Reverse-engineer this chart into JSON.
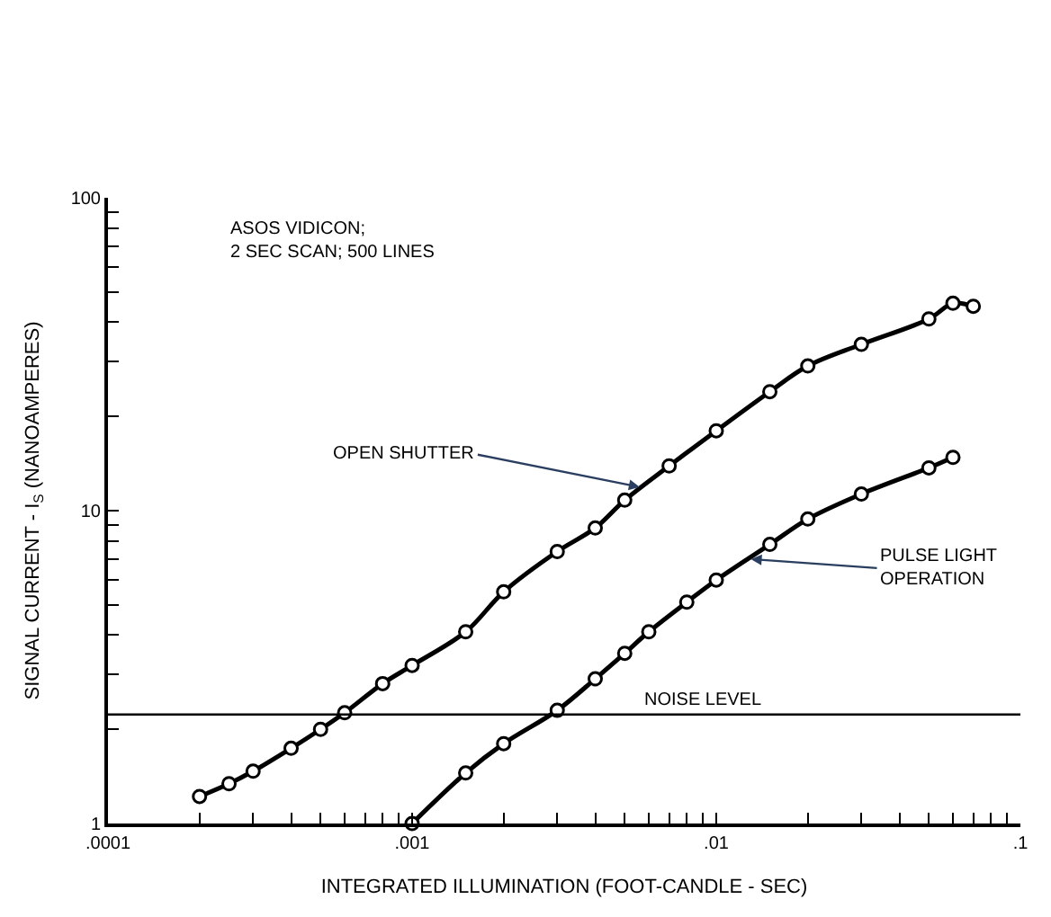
{
  "chart_data": {
    "type": "line",
    "xlabel": "INTEGRATED ILLUMINATION (FOOT-CANDLE - SEC)",
    "ylabel": "SIGNAL CURRENT - I$_{S}$ (NANOAMPERES)",
    "series": [
      {
        "color": "#000000",
        "x": [
          0.0002,
          0.00025,
          0.0003,
          0.0004,
          0.0005,
          0.0006,
          0.0008,
          0.001,
          0.0015,
          0.002,
          0.003,
          0.004,
          0.005,
          0.007,
          0.01,
          0.015,
          0.02,
          0.03,
          0.05,
          0.06,
          0.07
        ],
        "values": [
          1.22,
          1.34,
          1.47,
          1.74,
          2.0,
          2.26,
          2.8,
          3.2,
          4.1,
          5.5,
          7.4,
          8.8,
          10.8,
          13.9,
          18,
          24,
          29,
          34,
          41,
          46,
          45
        ]
      },
      {
        "color": "#000000",
        "x": [
          0.001,
          0.0015,
          0.002,
          0.003,
          0.004,
          0.005,
          0.006,
          0.008,
          0.01,
          0.015,
          0.02,
          0.03,
          0.05,
          0.06
        ],
        "values": [
          1.0,
          1.45,
          1.8,
          2.3,
          2.9,
          3.5,
          4.1,
          5.1,
          6.0,
          7.8,
          9.4,
          11.3,
          13.7,
          14.8
        ]
      }
    ],
    "annotations": [
      "ASOS VIDICON;\n2 SEC SCAN; 500 LINES",
      {
        "text": "OPEN SHUTTER",
        "x": 0.0056,
        "y": 11.9
      },
      {
        "text": "PULSE LIGHT\nOPERATION",
        "x": 0.013,
        "y": 7.0
      }
    ],
    "ref_lines": [
      {
        "axis": "y",
        "value": 2.23,
        "label": "NOISE LEVEL",
        "color": "#000000"
      }
    ],
    "log": "xy",
    "xlim": [
      0.0001,
      0.1
    ],
    "ylim": [
      1,
      100
    ],
    "xticks": [
      {
        "value": 0.0001,
        "label": ".0001"
      },
      {
        "value": 0.0002,
        "label": null
      },
      {
        "value": 0.0003,
        "label": null
      },
      {
        "value": 0.0004,
        "label": null
      },
      {
        "value": 0.0005,
        "label": null
      },
      {
        "value": 0.0006,
        "label": null
      },
      {
        "value": 0.0007,
        "label": null
      },
      {
        "value": 0.0008,
        "label": null
      },
      {
        "value": 0.0009,
        "label": null
      },
      {
        "value": 0.001,
        "label": ".001"
      },
      {
        "value": 0.002,
        "label": null
      },
      {
        "value": 0.003,
        "label": null
      },
      {
        "value": 0.004,
        "label": null
      },
      {
        "value": 0.005,
        "label": null
      },
      {
        "value": 0.006,
        "label": null
      },
      {
        "value": 0.007,
        "label": null
      },
      {
        "value": 0.008,
        "label": null
      },
      {
        "value": 0.009,
        "label": null
      },
      {
        "value": 0.01,
        "label": ".01"
      },
      {
        "value": 0.02,
        "label": null
      },
      {
        "value": 0.03,
        "label": null
      },
      {
        "value": 0.04,
        "label": null
      },
      {
        "value": 0.05,
        "label": null
      },
      {
        "value": 0.06,
        "label": null
      },
      {
        "value": 0.07,
        "label": null
      },
      {
        "value": 0.08,
        "label": null
      },
      {
        "value": 0.09,
        "label": null
      },
      {
        "value": 0.1,
        "label": ".1"
      }
    ],
    "yticks": [
      1,
      {
        "value": 2,
        "label": null
      },
      {
        "value": 3,
        "label": null
      },
      {
        "value": 4,
        "label": null
      },
      {
        "value": 5,
        "label": null
      },
      {
        "value": 6,
        "label": null
      },
      {
        "value": 7,
        "label": null
      },
      {
        "value": 8,
        "label": null
      },
      {
        "value": 9,
        "label": null
      },
      10,
      {
        "value": 20,
        "label": null
      },
      {
        "value": 30,
        "label": null
      },
      {
        "value": 40,
        "label": null
      },
      {
        "value": 50,
        "label": null
      },
      {
        "value": 60,
        "label": null
      },
      {
        "value": 70,
        "label": null
      },
      {
        "value": 80,
        "label": null
      },
      {
        "value": 90,
        "label": null
      },
      100
    ],
    "marker": "circle",
    "line_style": "solid"
  }
}
